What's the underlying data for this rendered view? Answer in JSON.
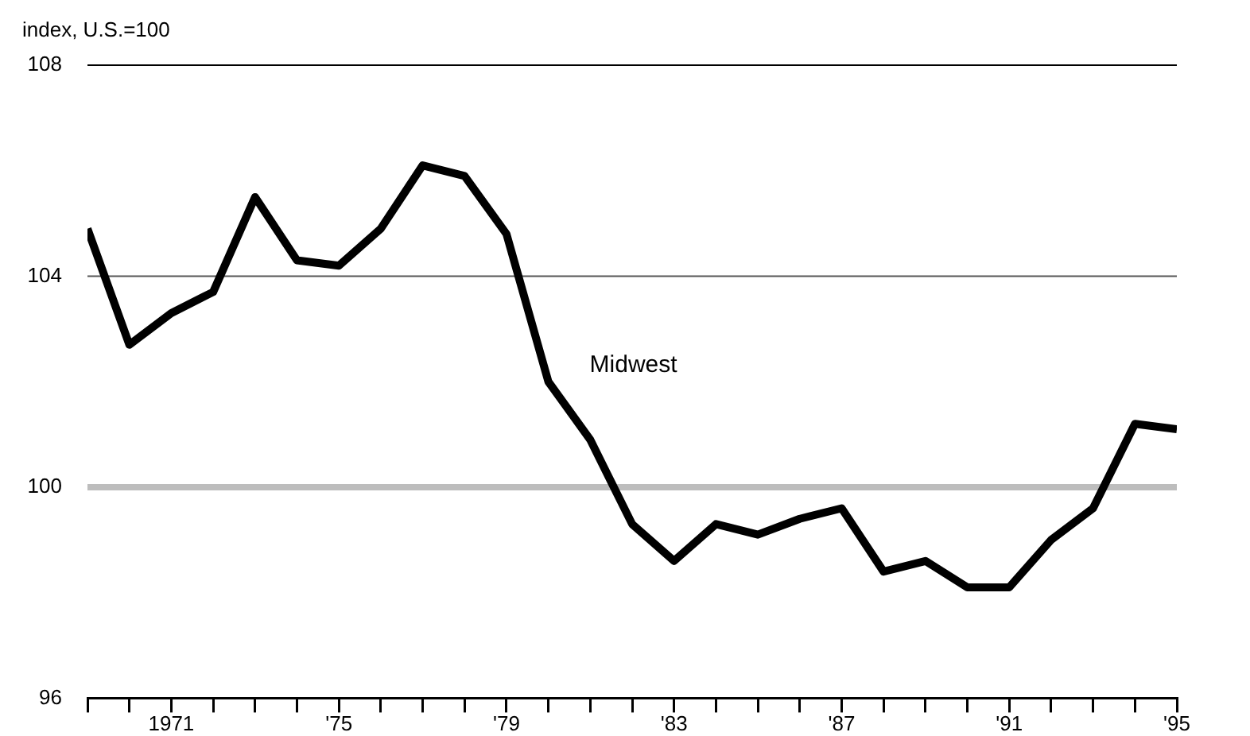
{
  "chart_data": {
    "type": "line",
    "ylabel": "index, U.S.=100",
    "x": [
      1969,
      1970,
      1971,
      1972,
      1973,
      1974,
      1975,
      1976,
      1977,
      1978,
      1979,
      1980,
      1981,
      1982,
      1983,
      1984,
      1985,
      1986,
      1987,
      1988,
      1989,
      1990,
      1991,
      1992,
      1993,
      1994,
      1995
    ],
    "series": [
      {
        "name": "Midwest",
        "color": "#000000",
        "values": [
          104.9,
          102.7,
          103.3,
          103.7,
          105.5,
          104.3,
          104.2,
          104.9,
          106.1,
          105.9,
          104.8,
          102.0,
          100.9,
          99.3,
          98.6,
          99.3,
          99.1,
          99.4,
          99.6,
          98.4,
          98.6,
          98.1,
          98.1,
          99.0,
          99.6,
          101.2,
          101.1
        ]
      }
    ],
    "xlim": [
      1969,
      1995
    ],
    "xticks": [
      {
        "value": 1969,
        "label": null
      },
      {
        "value": 1970,
        "label": null
      },
      {
        "value": 1971,
        "label": "1971"
      },
      {
        "value": 1972,
        "label": null
      },
      {
        "value": 1973,
        "label": null
      },
      {
        "value": 1974,
        "label": null
      },
      {
        "value": 1975,
        "label": "'75"
      },
      {
        "value": 1976,
        "label": null
      },
      {
        "value": 1977,
        "label": null
      },
      {
        "value": 1978,
        "label": null
      },
      {
        "value": 1979,
        "label": "'79"
      },
      {
        "value": 1980,
        "label": null
      },
      {
        "value": 1981,
        "label": null
      },
      {
        "value": 1982,
        "label": null
      },
      {
        "value": 1983,
        "label": "'83"
      },
      {
        "value": 1984,
        "label": null
      },
      {
        "value": 1985,
        "label": null
      },
      {
        "value": 1986,
        "label": null
      },
      {
        "value": 1987,
        "label": "'87"
      },
      {
        "value": 1988,
        "label": null
      },
      {
        "value": 1989,
        "label": null
      },
      {
        "value": 1990,
        "label": null
      },
      {
        "value": 1991,
        "label": "'91"
      },
      {
        "value": 1992,
        "label": null
      },
      {
        "value": 1993,
        "label": null
      },
      {
        "value": 1994,
        "label": null
      },
      {
        "value": 1995,
        "label": "'95"
      }
    ],
    "ylim": [
      96,
      108
    ],
    "yticks": [
      96,
      100,
      104,
      108
    ],
    "ref_lines": [
      {
        "axis": "y",
        "value": 100,
        "color": "#bdbdbd"
      },
      {
        "axis": "y",
        "value": 104,
        "color": "#555555"
      },
      {
        "axis": "y",
        "value": 108,
        "color": "#000000"
      }
    ],
    "legend": false,
    "marker": "none",
    "line_style": "solid"
  }
}
